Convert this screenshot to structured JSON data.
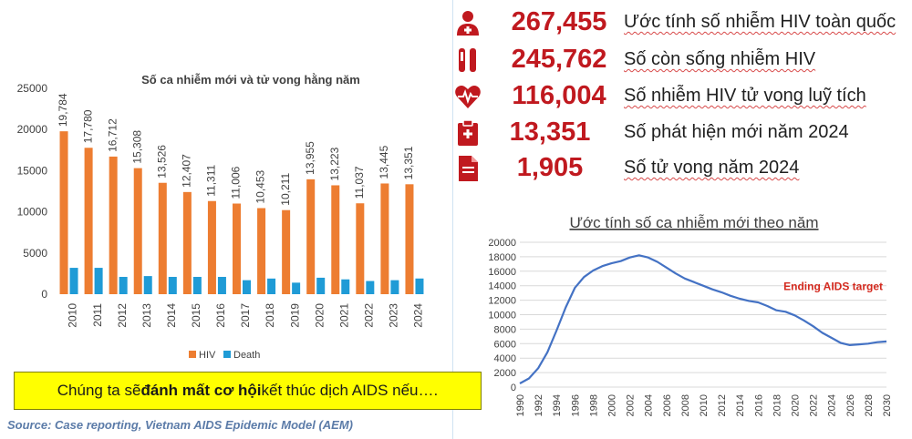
{
  "stats": [
    {
      "icon": "person-medical-icon",
      "value": "267,455",
      "label": "Ước tính số nhiễm HIV toàn quốc"
    },
    {
      "icon": "test-tube-icon",
      "value": "245,762",
      "label": "Số còn sống nhiễm HIV"
    },
    {
      "icon": "heartbeat-icon",
      "value": "116,004",
      "label": "Số nhiễm HIV tử vong luỹ tích"
    },
    {
      "icon": "clipboard-medical-icon",
      "value": "13,351",
      "label": "Số phát hiện mới năm 2024"
    },
    {
      "icon": "document-icon",
      "value": "1,905",
      "label": "Số tử vong năm 2024"
    }
  ],
  "callout": {
    "prefix": "Chúng ta sẽ ",
    "bold": "đánh mất cơ hội",
    "suffix": " kết thúc dịch AIDS nếu…."
  },
  "source": "Source: Case reporting, Vietnam AIDS Epidemic Model (AEM)",
  "colors": {
    "hiv": "#ed7d31",
    "death": "#1f9bd6",
    "line": "#4472c4",
    "value": "#c0191f",
    "target": "#d42a1f"
  },
  "chart_data": [
    {
      "type": "bar",
      "title": "Số ca nhiễm mới và tử vong hằng năm",
      "categories": [
        "2010",
        "2011",
        "2012",
        "2013",
        "2014",
        "2015",
        "2016",
        "2017",
        "2018",
        "2019",
        "2020",
        "2021",
        "2022",
        "2023",
        "2024"
      ],
      "series": [
        {
          "name": "HIV",
          "values": [
            19784,
            17780,
            16712,
            15308,
            13526,
            12407,
            11311,
            11006,
            10453,
            10211,
            13955,
            13223,
            11037,
            13445,
            13351
          ],
          "labels": [
            "19,784",
            "17,780",
            "16,712",
            "15,308",
            "13,526",
            "12,407",
            "11,311",
            "11,006",
            "10,453",
            "10,211",
            "13,955",
            "13,223",
            "11,037",
            "13,445",
            "13,351"
          ]
        },
        {
          "name": "Death",
          "values": [
            3200,
            3200,
            2100,
            2200,
            2100,
            2100,
            2100,
            1700,
            1900,
            1400,
            2000,
            1800,
            1600,
            1700,
            1905
          ]
        }
      ],
      "ylim": [
        0,
        25000
      ],
      "yticks": [
        "0",
        "5000",
        "10000",
        "15000",
        "20000",
        "25000"
      ],
      "legend": "bottom"
    },
    {
      "type": "line",
      "title": "Ước tính số ca nhiễm mới theo năm",
      "x": [
        1990,
        1991,
        1992,
        1993,
        1994,
        1995,
        1996,
        1997,
        1998,
        1999,
        2000,
        2001,
        2002,
        2003,
        2004,
        2005,
        2006,
        2007,
        2008,
        2009,
        2010,
        2011,
        2012,
        2013,
        2014,
        2015,
        2016,
        2017,
        2018,
        2019,
        2020,
        2021,
        2022,
        2023,
        2024,
        2025,
        2026,
        2027,
        2028,
        2029,
        2030
      ],
      "y": [
        500,
        1200,
        2600,
        4800,
        7800,
        11000,
        13700,
        15200,
        16100,
        16700,
        17100,
        17400,
        17900,
        18200,
        17900,
        17300,
        16500,
        15700,
        15000,
        14500,
        14000,
        13500,
        13100,
        12600,
        12200,
        11900,
        11700,
        11200,
        10600,
        10400,
        9900,
        9200,
        8400,
        7500,
        6800,
        6100,
        5800,
        5900,
        6000,
        6200,
        6300
      ],
      "ylim": [
        0,
        20000
      ],
      "yticks": [
        "0",
        "2000",
        "4000",
        "6000",
        "8000",
        "10000",
        "12000",
        "14000",
        "16000",
        "18000",
        "20000"
      ],
      "xticks": [
        "1990",
        "1992",
        "1994",
        "1996",
        "1998",
        "2000",
        "2002",
        "2004",
        "2006",
        "2008",
        "2010",
        "2012",
        "2014",
        "2016",
        "2018",
        "2020",
        "2022",
        "2024",
        "2026",
        "2028",
        "2030"
      ],
      "annotation": "Ending AIDS target",
      "grid": true
    }
  ]
}
